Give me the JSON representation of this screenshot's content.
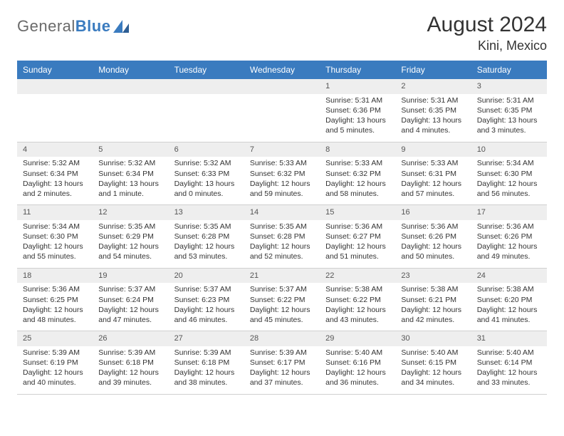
{
  "brand": {
    "word1": "General",
    "word2": "Blue"
  },
  "title": "August 2024",
  "location": "Kini, Mexico",
  "colors": {
    "header_bg": "#3a7bbf",
    "header_fg": "#ffffff",
    "daynum_bg": "#eeeeee",
    "text": "#333333",
    "logo_gray": "#6a6a6a",
    "logo_blue": "#3a7bbf"
  },
  "days_of_week": [
    "Sunday",
    "Monday",
    "Tuesday",
    "Wednesday",
    "Thursday",
    "Friday",
    "Saturday"
  ],
  "weeks": [
    [
      null,
      null,
      null,
      null,
      {
        "n": "1",
        "sunrise": "Sunrise: 5:31 AM",
        "sunset": "Sunset: 6:36 PM",
        "day1": "Daylight: 13 hours",
        "day2": "and 5 minutes."
      },
      {
        "n": "2",
        "sunrise": "Sunrise: 5:31 AM",
        "sunset": "Sunset: 6:35 PM",
        "day1": "Daylight: 13 hours",
        "day2": "and 4 minutes."
      },
      {
        "n": "3",
        "sunrise": "Sunrise: 5:31 AM",
        "sunset": "Sunset: 6:35 PM",
        "day1": "Daylight: 13 hours",
        "day2": "and 3 minutes."
      }
    ],
    [
      {
        "n": "4",
        "sunrise": "Sunrise: 5:32 AM",
        "sunset": "Sunset: 6:34 PM",
        "day1": "Daylight: 13 hours",
        "day2": "and 2 minutes."
      },
      {
        "n": "5",
        "sunrise": "Sunrise: 5:32 AM",
        "sunset": "Sunset: 6:34 PM",
        "day1": "Daylight: 13 hours",
        "day2": "and 1 minute."
      },
      {
        "n": "6",
        "sunrise": "Sunrise: 5:32 AM",
        "sunset": "Sunset: 6:33 PM",
        "day1": "Daylight: 13 hours",
        "day2": "and 0 minutes."
      },
      {
        "n": "7",
        "sunrise": "Sunrise: 5:33 AM",
        "sunset": "Sunset: 6:32 PM",
        "day1": "Daylight: 12 hours",
        "day2": "and 59 minutes."
      },
      {
        "n": "8",
        "sunrise": "Sunrise: 5:33 AM",
        "sunset": "Sunset: 6:32 PM",
        "day1": "Daylight: 12 hours",
        "day2": "and 58 minutes."
      },
      {
        "n": "9",
        "sunrise": "Sunrise: 5:33 AM",
        "sunset": "Sunset: 6:31 PM",
        "day1": "Daylight: 12 hours",
        "day2": "and 57 minutes."
      },
      {
        "n": "10",
        "sunrise": "Sunrise: 5:34 AM",
        "sunset": "Sunset: 6:30 PM",
        "day1": "Daylight: 12 hours",
        "day2": "and 56 minutes."
      }
    ],
    [
      {
        "n": "11",
        "sunrise": "Sunrise: 5:34 AM",
        "sunset": "Sunset: 6:30 PM",
        "day1": "Daylight: 12 hours",
        "day2": "and 55 minutes."
      },
      {
        "n": "12",
        "sunrise": "Sunrise: 5:35 AM",
        "sunset": "Sunset: 6:29 PM",
        "day1": "Daylight: 12 hours",
        "day2": "and 54 minutes."
      },
      {
        "n": "13",
        "sunrise": "Sunrise: 5:35 AM",
        "sunset": "Sunset: 6:28 PM",
        "day1": "Daylight: 12 hours",
        "day2": "and 53 minutes."
      },
      {
        "n": "14",
        "sunrise": "Sunrise: 5:35 AM",
        "sunset": "Sunset: 6:28 PM",
        "day1": "Daylight: 12 hours",
        "day2": "and 52 minutes."
      },
      {
        "n": "15",
        "sunrise": "Sunrise: 5:36 AM",
        "sunset": "Sunset: 6:27 PM",
        "day1": "Daylight: 12 hours",
        "day2": "and 51 minutes."
      },
      {
        "n": "16",
        "sunrise": "Sunrise: 5:36 AM",
        "sunset": "Sunset: 6:26 PM",
        "day1": "Daylight: 12 hours",
        "day2": "and 50 minutes."
      },
      {
        "n": "17",
        "sunrise": "Sunrise: 5:36 AM",
        "sunset": "Sunset: 6:26 PM",
        "day1": "Daylight: 12 hours",
        "day2": "and 49 minutes."
      }
    ],
    [
      {
        "n": "18",
        "sunrise": "Sunrise: 5:36 AM",
        "sunset": "Sunset: 6:25 PM",
        "day1": "Daylight: 12 hours",
        "day2": "and 48 minutes."
      },
      {
        "n": "19",
        "sunrise": "Sunrise: 5:37 AM",
        "sunset": "Sunset: 6:24 PM",
        "day1": "Daylight: 12 hours",
        "day2": "and 47 minutes."
      },
      {
        "n": "20",
        "sunrise": "Sunrise: 5:37 AM",
        "sunset": "Sunset: 6:23 PM",
        "day1": "Daylight: 12 hours",
        "day2": "and 46 minutes."
      },
      {
        "n": "21",
        "sunrise": "Sunrise: 5:37 AM",
        "sunset": "Sunset: 6:22 PM",
        "day1": "Daylight: 12 hours",
        "day2": "and 45 minutes."
      },
      {
        "n": "22",
        "sunrise": "Sunrise: 5:38 AM",
        "sunset": "Sunset: 6:22 PM",
        "day1": "Daylight: 12 hours",
        "day2": "and 43 minutes."
      },
      {
        "n": "23",
        "sunrise": "Sunrise: 5:38 AM",
        "sunset": "Sunset: 6:21 PM",
        "day1": "Daylight: 12 hours",
        "day2": "and 42 minutes."
      },
      {
        "n": "24",
        "sunrise": "Sunrise: 5:38 AM",
        "sunset": "Sunset: 6:20 PM",
        "day1": "Daylight: 12 hours",
        "day2": "and 41 minutes."
      }
    ],
    [
      {
        "n": "25",
        "sunrise": "Sunrise: 5:39 AM",
        "sunset": "Sunset: 6:19 PM",
        "day1": "Daylight: 12 hours",
        "day2": "and 40 minutes."
      },
      {
        "n": "26",
        "sunrise": "Sunrise: 5:39 AM",
        "sunset": "Sunset: 6:18 PM",
        "day1": "Daylight: 12 hours",
        "day2": "and 39 minutes."
      },
      {
        "n": "27",
        "sunrise": "Sunrise: 5:39 AM",
        "sunset": "Sunset: 6:18 PM",
        "day1": "Daylight: 12 hours",
        "day2": "and 38 minutes."
      },
      {
        "n": "28",
        "sunrise": "Sunrise: 5:39 AM",
        "sunset": "Sunset: 6:17 PM",
        "day1": "Daylight: 12 hours",
        "day2": "and 37 minutes."
      },
      {
        "n": "29",
        "sunrise": "Sunrise: 5:40 AM",
        "sunset": "Sunset: 6:16 PM",
        "day1": "Daylight: 12 hours",
        "day2": "and 36 minutes."
      },
      {
        "n": "30",
        "sunrise": "Sunrise: 5:40 AM",
        "sunset": "Sunset: 6:15 PM",
        "day1": "Daylight: 12 hours",
        "day2": "and 34 minutes."
      },
      {
        "n": "31",
        "sunrise": "Sunrise: 5:40 AM",
        "sunset": "Sunset: 6:14 PM",
        "day1": "Daylight: 12 hours",
        "day2": "and 33 minutes."
      }
    ]
  ]
}
